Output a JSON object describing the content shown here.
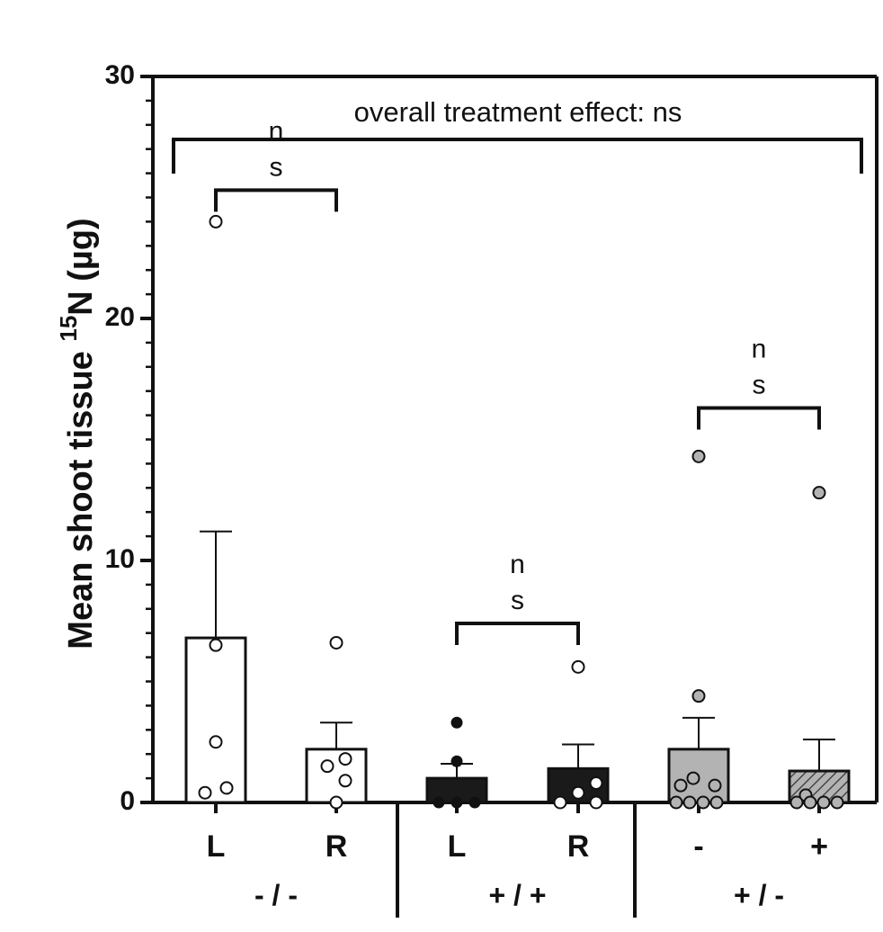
{
  "chart_data": {
    "type": "bar",
    "title": "",
    "ylabel_main": "Mean shoot tissue ",
    "ylabel_sup": "15",
    "ylabel_end": "N (µg)",
    "ylim": [
      0,
      30
    ],
    "yticks": [
      "0",
      "10",
      "20",
      "30"
    ],
    "categories": [
      "L",
      "R",
      "L",
      "R",
      "-",
      "+"
    ],
    "groups": [
      {
        "label": "- / -",
        "members": [
          0,
          1
        ]
      },
      {
        "label": "+ / +",
        "members": [
          2,
          3
        ]
      },
      {
        "label": "+ / -",
        "members": [
          4,
          5
        ]
      }
    ],
    "bars": [
      {
        "mean": 6.8,
        "err": 11.2,
        "fill": "#ffffff",
        "pattern": "none",
        "dot_fill": "#ffffff"
      },
      {
        "mean": 2.2,
        "err": 3.3,
        "fill": "#ffffff",
        "pattern": "none",
        "dot_fill": "#ffffff"
      },
      {
        "mean": 1.0,
        "err": 1.6,
        "fill": "#1a1a1a",
        "pattern": "none",
        "dot_fill": "#111111"
      },
      {
        "mean": 1.4,
        "err": 2.4,
        "fill": "#1a1a1a",
        "pattern": "none",
        "dot_fill": "#ffffff"
      },
      {
        "mean": 2.2,
        "err": 3.5,
        "fill": "#b3b3b3",
        "pattern": "none",
        "dot_fill": "#b3b3b3"
      },
      {
        "mean": 1.3,
        "err": 2.6,
        "fill": "#b3b3b3",
        "pattern": "hatch",
        "dot_fill": "#b3b3b3"
      }
    ],
    "points": [
      [
        [
          0.0,
          24.0
        ],
        [
          0.0,
          6.5
        ],
        [
          0.0,
          2.5
        ],
        [
          -0.12,
          0.4
        ],
        [
          0.12,
          0.6
        ]
      ],
      [
        [
          0.0,
          6.6
        ],
        [
          -0.1,
          1.5
        ],
        [
          0.1,
          1.8
        ],
        [
          0.1,
          0.9
        ],
        [
          0.0,
          0.0
        ]
      ],
      [
        [
          0.0,
          3.3
        ],
        [
          0.0,
          1.7
        ],
        [
          -0.2,
          0.0
        ],
        [
          0.0,
          0.0
        ],
        [
          0.2,
          0.0
        ]
      ],
      [
        [
          0.0,
          5.6
        ],
        [
          -0.2,
          0.0
        ],
        [
          0.0,
          0.4
        ],
        [
          0.2,
          0.8
        ],
        [
          0.2,
          0.0
        ]
      ],
      [
        [
          0.0,
          14.3
        ],
        [
          0.0,
          4.4
        ],
        [
          -0.2,
          0.7
        ],
        [
          -0.06,
          1.0
        ],
        [
          0.18,
          0.7
        ],
        [
          -0.25,
          0.0
        ],
        [
          -0.1,
          0.0
        ],
        [
          0.05,
          0.0
        ],
        [
          0.2,
          0.0
        ]
      ],
      [
        [
          0.0,
          12.8
        ],
        [
          -0.15,
          0.3
        ],
        [
          -0.25,
          0.0
        ],
        [
          -0.1,
          0.0
        ],
        [
          0.05,
          0.0
        ],
        [
          0.2,
          0.0
        ]
      ]
    ],
    "comparisons": [
      {
        "from": 0,
        "to": 1,
        "y": 25.3,
        "label_top": "n",
        "label_bottom": "s"
      },
      {
        "from": 2,
        "to": 3,
        "y": 7.4,
        "label_top": "n",
        "label_bottom": "s"
      },
      {
        "from": 4,
        "to": 5,
        "y": 16.3,
        "label_top": "n",
        "label_bottom": "s"
      }
    ],
    "overall": {
      "label": "overall treatment effect: ns",
      "y": 27.4
    }
  }
}
